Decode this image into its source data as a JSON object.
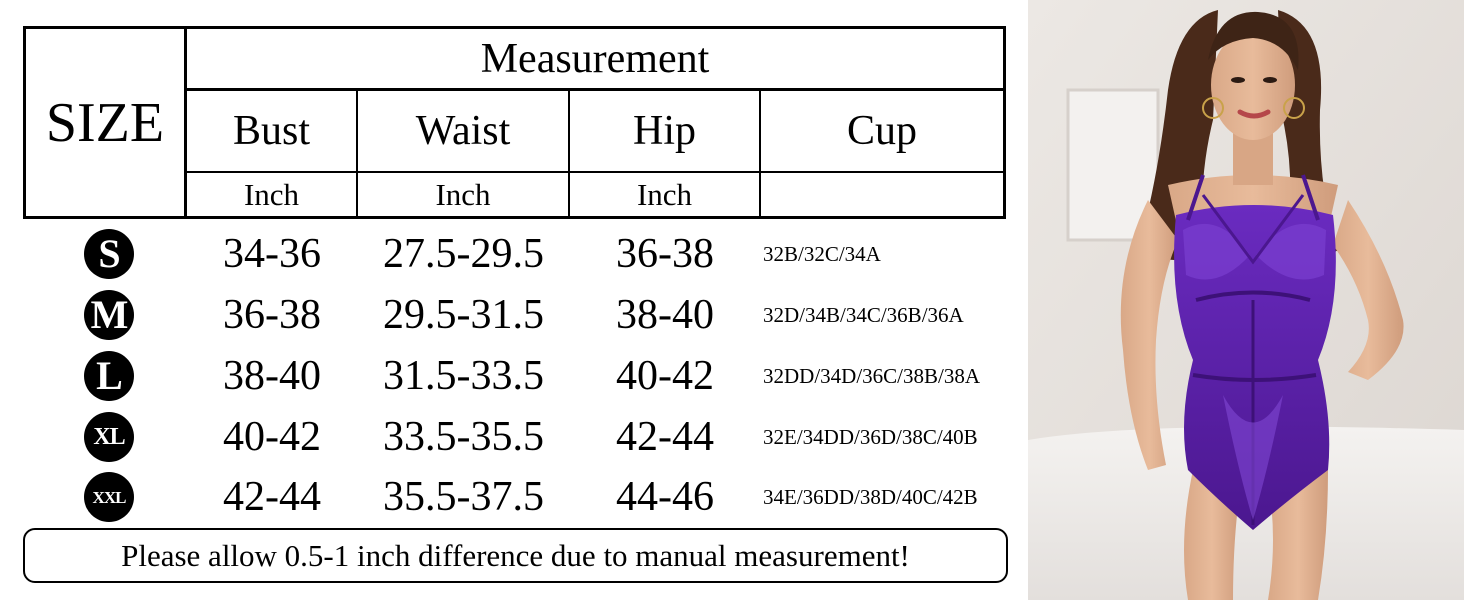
{
  "table": {
    "size_header": "SIZE",
    "measurement_header": "Measurement",
    "columns": [
      {
        "label": "Bust",
        "unit": "Inch"
      },
      {
        "label": "Waist",
        "unit": "Inch"
      },
      {
        "label": "Hip",
        "unit": "Inch"
      },
      {
        "label": "Cup",
        "unit": ""
      }
    ],
    "rows": [
      {
        "size": "S",
        "bust": "34-36",
        "waist": "27.5-29.5",
        "hip": "36-38",
        "cup": "32B/32C/34A"
      },
      {
        "size": "M",
        "bust": "36-38",
        "waist": "29.5-31.5",
        "hip": "38-40",
        "cup": "32D/34B/34C/36B/36A"
      },
      {
        "size": "L",
        "bust": "38-40",
        "waist": "31.5-33.5",
        "hip": "40-42",
        "cup": "32DD/34D/36C/38B/38A"
      },
      {
        "size": "XL",
        "bust": "40-42",
        "waist": "33.5-35.5",
        "hip": "42-44",
        "cup": "32E/34DD/36D/38C/40B"
      },
      {
        "size": "XXL",
        "bust": "42-44",
        "waist": "35.5-37.5",
        "hip": "44-46",
        "cup": "34E/36DD/38D/40C/42B"
      }
    ]
  },
  "note": "Please allow 0.5-1 inch difference due to manual measurement!",
  "photo": {
    "icon": "model-photo",
    "garment_color": "#5b1fa8",
    "background_color": "#ebe6e2"
  }
}
